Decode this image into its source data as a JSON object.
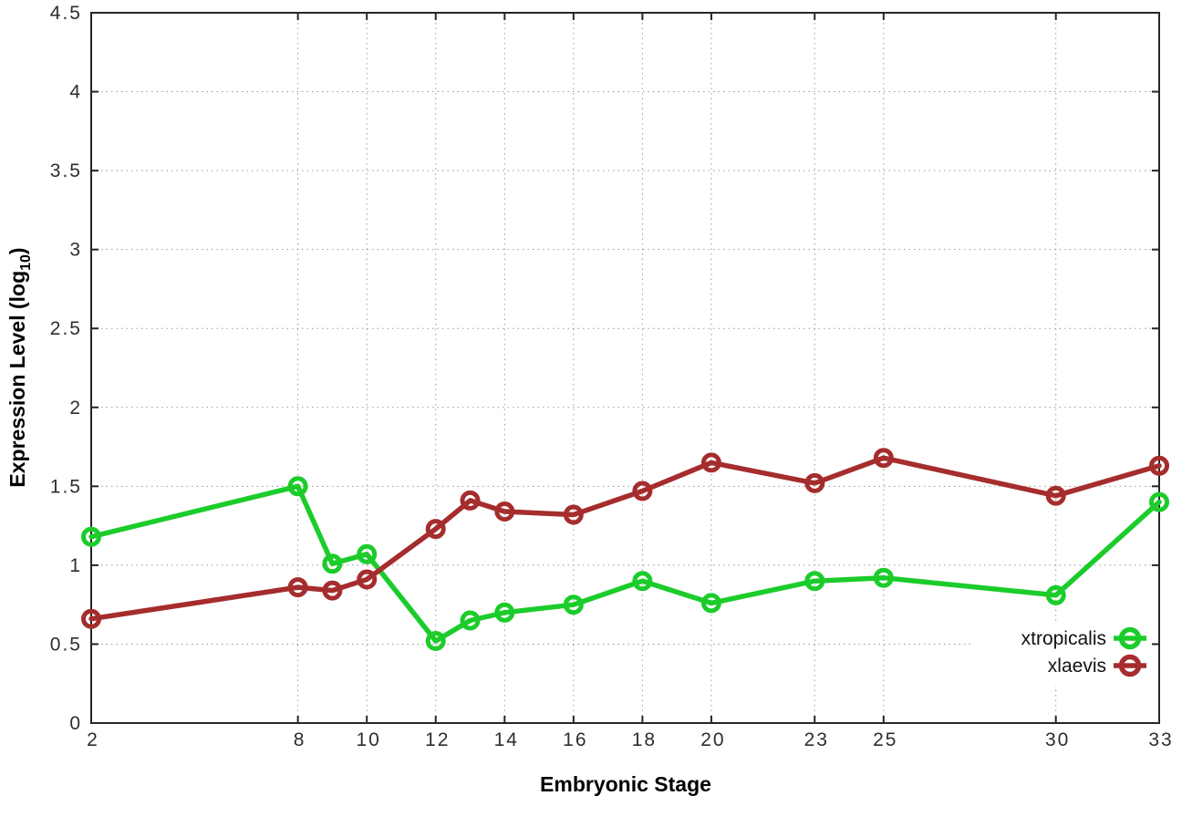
{
  "chart_data": {
    "type": "line",
    "title": "",
    "xlabel": "Embryonic Stage",
    "ylabel": {
      "main": "Expression Level (log",
      "sub": "10",
      "close": ")"
    },
    "xlim": [
      2,
      33
    ],
    "ylim": [
      0,
      4.5
    ],
    "grid": true,
    "legend_position": "inside-bottom-right",
    "x": [
      2,
      8,
      9,
      10,
      12,
      13,
      14,
      16,
      18,
      20,
      23,
      25,
      30,
      33
    ],
    "xticks": [
      {
        "value": 2,
        "label": "2"
      },
      {
        "value": 8,
        "label": "8"
      },
      {
        "value": 10,
        "label": "10"
      },
      {
        "value": 12,
        "label": "12"
      },
      {
        "value": 14,
        "label": "14"
      },
      {
        "value": 16,
        "label": "16"
      },
      {
        "value": 18,
        "label": "18"
      },
      {
        "value": 20,
        "label": "20"
      },
      {
        "value": 23,
        "label": "23"
      },
      {
        "value": 25,
        "label": "25"
      },
      {
        "value": 30,
        "label": "30"
      },
      {
        "value": 33,
        "label": "33"
      }
    ],
    "yticks": [
      {
        "value": 0,
        "label": "0"
      },
      {
        "value": 0.5,
        "label": "0.5"
      },
      {
        "value": 1,
        "label": "1"
      },
      {
        "value": 1.5,
        "label": "1.5"
      },
      {
        "value": 2,
        "label": "2"
      },
      {
        "value": 2.5,
        "label": "2.5"
      },
      {
        "value": 3,
        "label": "3"
      },
      {
        "value": 3.5,
        "label": "3.5"
      },
      {
        "value": 4,
        "label": "4"
      },
      {
        "value": 4.5,
        "label": "4.5"
      }
    ],
    "series": [
      {
        "name": "xtropicalis",
        "color": "#1bcc2a",
        "marker": "open-circle",
        "values": [
          1.18,
          1.5,
          1.01,
          1.07,
          0.52,
          0.65,
          0.7,
          0.75,
          0.9,
          0.76,
          0.9,
          0.92,
          0.81,
          1.4
        ]
      },
      {
        "name": "xlaevis",
        "color": "#a52d2d",
        "marker": "open-circle",
        "values": [
          0.66,
          0.86,
          0.84,
          0.91,
          1.23,
          1.41,
          1.34,
          1.32,
          1.47,
          1.65,
          1.52,
          1.68,
          1.44,
          1.63
        ]
      }
    ]
  },
  "colors": {
    "axis": "#262626",
    "grid": "#999999",
    "background": "#ffffff",
    "tick_text": "#2e2e2e"
  }
}
